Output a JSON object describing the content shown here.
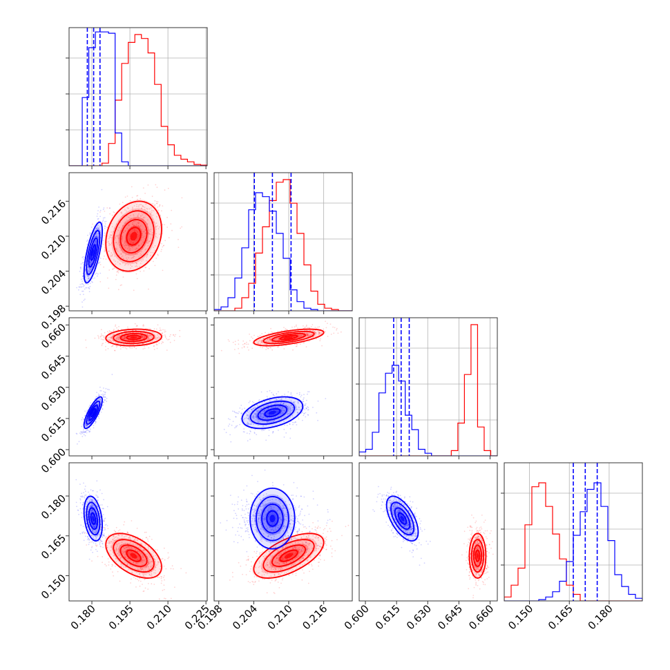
{
  "colors": {
    "blue": "#0000ff",
    "red": "#ff0000",
    "grid": "#b0b0b0",
    "frame": "#333333"
  },
  "chart_data": {
    "type": "corner",
    "title": "",
    "n_params": 4,
    "series": [
      {
        "name": "blue",
        "color": "#0000ff",
        "means": [
          0.1805,
          0.2072,
          0.6178,
          0.1715
        ],
        "sigmas": [
          0.0018,
          0.0026,
          0.0038,
          0.0042
        ],
        "correlations": {
          "0-1": 0.7,
          "0-2": 0.8,
          "1-2": 0.4,
          "0-3": -0.3,
          "1-3": 0.0,
          "2-3": -0.6
        },
        "quantiles": [
          [
            0.1782,
            0.1807,
            0.1832
          ],
          [
            0.2041,
            0.2072,
            0.2104
          ],
          [
            0.6136,
            0.6172,
            0.6211
          ],
          [
            0.1665,
            0.171,
            0.1755
          ]
        ]
      },
      {
        "name": "red",
        "color": "#ff0000",
        "means": [
          0.1965,
          0.21,
          0.654,
          0.1575
        ],
        "sigmas": [
          0.0055,
          0.003,
          0.002,
          0.0042
        ],
        "correlations": {
          "0-1": 0.2,
          "0-2": 0.1,
          "1-2": 0.6,
          "0-3": -0.5,
          "1-3": 0.6,
          "2-3": 0.0
        }
      }
    ],
    "axes": [
      {
        "range": [
          0.171,
          0.2255
        ],
        "ticks": [
          0.18,
          0.195,
          0.21,
          0.225
        ],
        "tick_labels": [
          "0.180",
          "0.195",
          "0.210",
          "0.225"
        ]
      },
      {
        "range": [
          0.1972,
          0.2209
        ],
        "ticks": [
          0.198,
          0.204,
          0.21,
          0.216
        ],
        "tick_labels": [
          "0.198",
          "0.204",
          "0.210",
          "0.216"
        ]
      },
      {
        "range": [
          0.597,
          0.6635
        ],
        "ticks": [
          0.6,
          0.615,
          0.63,
          0.645,
          0.66
        ],
        "tick_labels": [
          "0.600",
          "0.615",
          "0.630",
          "0.645",
          "0.660"
        ]
      },
      {
        "range": [
          0.1405,
          0.1925
        ],
        "ticks": [
          0.15,
          0.165,
          0.18
        ],
        "tick_labels": [
          "0.150",
          "0.165",
          "0.180"
        ]
      }
    ],
    "histograms": [
      {
        "bins": 21,
        "blue": [
          0,
          0,
          0.52,
          0.9,
          1.02,
          1.02,
          1.01,
          0.25,
          0.03,
          0,
          0,
          0,
          0,
          0,
          0,
          0,
          0,
          0,
          0,
          0,
          0
        ],
        "red": [
          0,
          0,
          0,
          0,
          0,
          0.02,
          0.17,
          0.5,
          0.78,
          0.94,
          1.0,
          0.97,
          0.86,
          0.62,
          0.3,
          0.16,
          0.08,
          0.05,
          0.03,
          0.01,
          0.005
        ]
      },
      {
        "bins": 20,
        "blue": [
          0.01,
          0.03,
          0.1,
          0.25,
          0.48,
          0.77,
          0.9,
          0.87,
          0.76,
          0.59,
          0.4,
          0.16,
          0.07,
          0.02,
          0.01,
          0,
          0,
          0,
          0,
          0
        ],
        "red": [
          0,
          0,
          0,
          0.02,
          0.1,
          0.21,
          0.44,
          0.64,
          0.84,
          0.98,
          1.0,
          0.82,
          0.59,
          0.35,
          0.15,
          0.05,
          0.02,
          0.01,
          0,
          0
        ]
      },
      {
        "bins": 21,
        "blue": [
          0.03,
          0.05,
          0.18,
          0.48,
          0.63,
          0.69,
          0.57,
          0.31,
          0.2,
          0.05,
          0.02,
          0,
          0,
          0,
          0,
          0,
          0,
          0,
          0,
          0,
          0
        ],
        "red": [
          0,
          0,
          0,
          0,
          0,
          0,
          0,
          0,
          0,
          0,
          0,
          0,
          0,
          0,
          0.04,
          0.25,
          0.62,
          1.0,
          0.22,
          0.04,
          0
        ]
      },
      {
        "bins": 20,
        "blue": [
          0,
          0,
          0,
          0,
          0,
          0.01,
          0.03,
          0.07,
          0.15,
          0.3,
          0.5,
          0.68,
          0.85,
          0.9,
          0.72,
          0.46,
          0.2,
          0.11,
          0.05,
          0.02
        ],
        "red": [
          0.03,
          0.12,
          0.25,
          0.58,
          0.87,
          0.9,
          0.72,
          0.51,
          0.32,
          0.12,
          0.05,
          0,
          0,
          0,
          0,
          0,
          0,
          0,
          0,
          0
        ]
      }
    ]
  }
}
